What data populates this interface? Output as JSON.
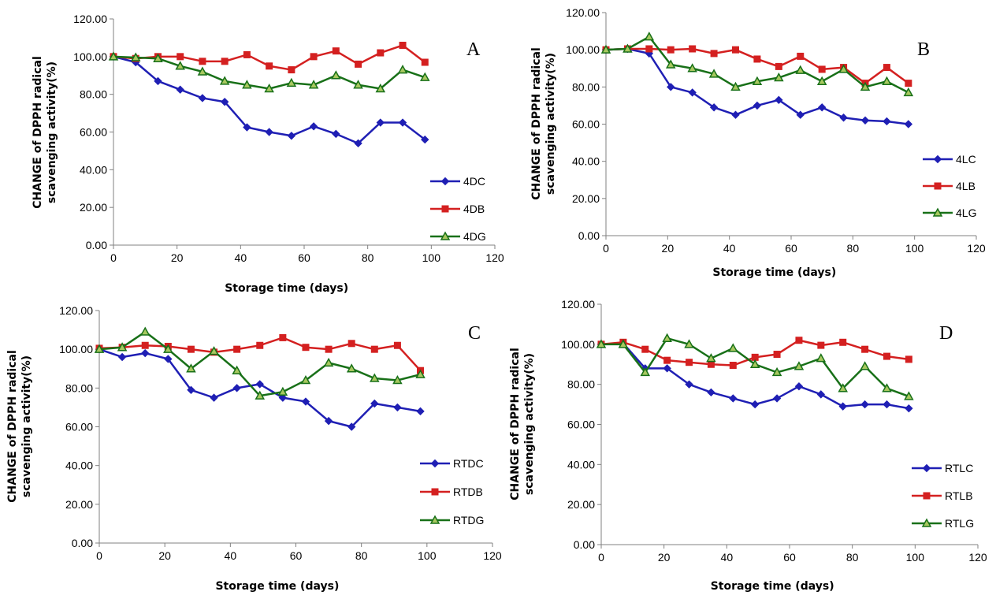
{
  "chart_data": [
    {
      "type": "line",
      "panel_label": "A",
      "xlabel": "Storage time (days)",
      "ylabel": "CHANGE of DPPH radical scavenging activity(%)",
      "xlim": [
        0,
        120
      ],
      "ylim": [
        0,
        120
      ],
      "x_ticks": [
        "0",
        "20",
        "40",
        "60",
        "80",
        "100",
        "120"
      ],
      "y_ticks": [
        "0.00",
        "20.00",
        "40.00",
        "60.00",
        "80.00",
        "100.00",
        "120.00"
      ],
      "x": [
        0,
        7,
        14,
        21,
        28,
        35,
        42,
        49,
        56,
        63,
        70,
        77,
        84,
        91,
        98
      ],
      "legend_position": "bottom-right",
      "series": [
        {
          "name": "4DC",
          "color": "#1f1fb4",
          "marker": "diamond",
          "values": [
            100,
            97,
            87,
            82.5,
            78,
            76,
            62.5,
            60,
            58,
            63,
            59,
            54,
            65,
            65,
            56
          ]
        },
        {
          "name": "4DB",
          "color": "#d42020",
          "marker": "square",
          "values": [
            100,
            99,
            100,
            100,
            97.5,
            97.5,
            101,
            95,
            93,
            100,
            103,
            96,
            102,
            106,
            97
          ]
        },
        {
          "name": "4DG",
          "color": "#187018",
          "marker": "triangle",
          "values": [
            100,
            99.5,
            99,
            95,
            92,
            87,
            85,
            83,
            86,
            85,
            90,
            85,
            83,
            93,
            89
          ]
        }
      ]
    },
    {
      "type": "line",
      "panel_label": "B",
      "xlabel": "Storage time (days)",
      "ylabel": "CHANGE of DPPH radical scavenging activity(%)",
      "xlim": [
        0,
        120
      ],
      "ylim": [
        0,
        120
      ],
      "x_ticks": [
        "0",
        "20",
        "40",
        "60",
        "80",
        "100",
        "120"
      ],
      "y_ticks": [
        "0.00",
        "20.00",
        "40.00",
        "60.00",
        "80.00",
        "100.00",
        "120.00"
      ],
      "x": [
        0,
        7,
        14,
        21,
        28,
        35,
        42,
        49,
        56,
        63,
        70,
        77,
        84,
        91,
        98
      ],
      "legend_position": "bottom-right",
      "series": [
        {
          "name": "4LC",
          "color": "#1f1fb4",
          "marker": "diamond",
          "values": [
            100,
            100.5,
            98,
            80,
            77,
            69,
            65,
            70,
            73,
            65,
            69,
            63.5,
            62,
            61.5,
            60
          ]
        },
        {
          "name": "4LB",
          "color": "#d42020",
          "marker": "square",
          "values": [
            100,
            100.5,
            100.5,
            100,
            100.5,
            98,
            100,
            95,
            91,
            96.5,
            89.5,
            90.5,
            82,
            90.5,
            82
          ]
        },
        {
          "name": "4LG",
          "color": "#187018",
          "marker": "triangle",
          "values": [
            100,
            100.5,
            107,
            92,
            90,
            87,
            80,
            83,
            85,
            89,
            83,
            89.5,
            80,
            83,
            77
          ]
        }
      ]
    },
    {
      "type": "line",
      "panel_label": "C",
      "xlabel": "Storage time (days)",
      "ylabel": "CHANGE of DPPH radical scavenging activity(%)",
      "xlim": [
        0,
        120
      ],
      "ylim": [
        0,
        120
      ],
      "x_ticks": [
        "0",
        "20",
        "40",
        "60",
        "80",
        "100",
        "120"
      ],
      "y_ticks": [
        "0.00",
        "20.00",
        "40.00",
        "60.00",
        "80.00",
        "100.00",
        "120.00"
      ],
      "x": [
        0,
        7,
        14,
        21,
        28,
        35,
        42,
        49,
        56,
        63,
        70,
        77,
        84,
        91,
        98
      ],
      "legend_position": "bottom-right",
      "series": [
        {
          "name": "RTDC",
          "color": "#1f1fb4",
          "marker": "diamond",
          "values": [
            100,
            96,
            98,
            95,
            79,
            75,
            80,
            82,
            75,
            73,
            63,
            60,
            72,
            70,
            68
          ]
        },
        {
          "name": "RTDB",
          "color": "#d42020",
          "marker": "square",
          "values": [
            100.5,
            101,
            102,
            101.5,
            100,
            98.5,
            100,
            102,
            106,
            101,
            100,
            103,
            100,
            102,
            89
          ]
        },
        {
          "name": "RTDG",
          "color": "#187018",
          "marker": "triangle",
          "values": [
            100,
            101,
            109,
            100,
            90,
            99,
            89,
            76,
            78,
            84,
            93,
            90,
            85,
            84,
            87
          ]
        }
      ]
    },
    {
      "type": "line",
      "panel_label": "D",
      "xlabel": "Storage time (days)",
      "ylabel": "CHANGE of DPPH radical scavenging activity(%)",
      "xlim": [
        0,
        120
      ],
      "ylim": [
        0,
        120
      ],
      "x_ticks": [
        "0",
        "20",
        "40",
        "60",
        "80",
        "100",
        "120"
      ],
      "y_ticks": [
        "0.00",
        "20.00",
        "40.00",
        "60.00",
        "80.00",
        "100.00",
        "120.00"
      ],
      "x": [
        0,
        7,
        14,
        21,
        28,
        35,
        42,
        49,
        56,
        63,
        70,
        77,
        84,
        91,
        98
      ],
      "legend_position": "bottom-right",
      "series": [
        {
          "name": "RTLC",
          "color": "#1f1fb4",
          "marker": "diamond",
          "values": [
            100,
            100.5,
            88,
            88,
            80,
            76,
            73,
            70,
            73,
            79,
            75,
            69,
            70,
            70,
            68
          ]
        },
        {
          "name": "RTLB",
          "color": "#d42020",
          "marker": "square",
          "values": [
            100,
            101,
            97.5,
            92,
            91,
            90,
            89.5,
            93.5,
            95,
            102,
            99.5,
            101,
            97.5,
            94,
            92.5
          ]
        },
        {
          "name": "RTLG",
          "color": "#187018",
          "marker": "triangle",
          "values": [
            100,
            100,
            86,
            103,
            100,
            93,
            98,
            90,
            86,
            89,
            93,
            78,
            89,
            78,
            74
          ]
        }
      ]
    }
  ]
}
